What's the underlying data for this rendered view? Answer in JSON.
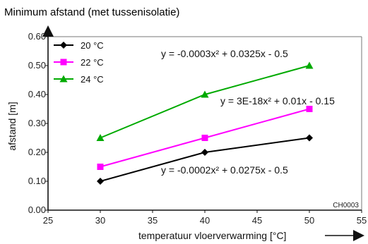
{
  "chart_data": {
    "type": "line",
    "title": "Minimum afstand (met tussenisolatie)",
    "xlabel": "temperatuur vloerverwarming [°C]",
    "ylabel": "afstand [m]",
    "xlim": [
      25,
      55
    ],
    "ylim": [
      0,
      0.6
    ],
    "x_ticks": [
      "25",
      "30",
      "35",
      "40",
      "45",
      "50",
      "55"
    ],
    "y_ticks": [
      "0.00",
      "0.10",
      "0.20",
      "0.30",
      "0.40",
      "0.50",
      "0.60"
    ],
    "x": [
      30,
      40,
      50
    ],
    "series": [
      {
        "name": "20 °C",
        "values": [
          0.1,
          0.2,
          0.25
        ],
        "color": "#000000",
        "marker": "diamond",
        "equation": "y = -0.0002x² + 0.0275x - 0.5"
      },
      {
        "name": "22 °C",
        "values": [
          0.15,
          0.25,
          0.35
        ],
        "color": "#ff00ff",
        "marker": "square",
        "equation": "y = 3E-18x² + 0.01x - 0.15"
      },
      {
        "name": "24 °C",
        "values": [
          0.25,
          0.4,
          0.5
        ],
        "color": "#00aa00",
        "marker": "triangle",
        "equation": "y = -0.0003x² + 0.0325x - 0.5"
      }
    ],
    "grid": false,
    "legend_position": "top-left",
    "code_label": "CH0003"
  }
}
